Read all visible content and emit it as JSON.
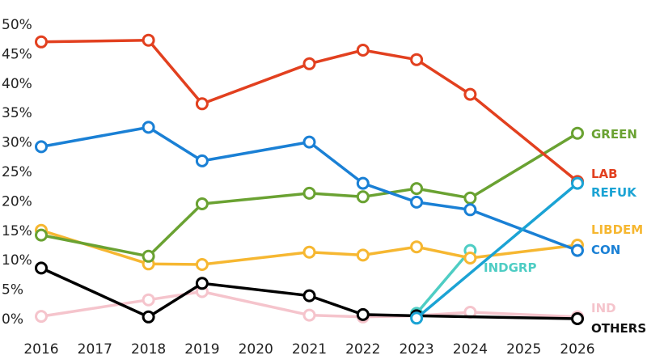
{
  "chart_data": {
    "type": "line",
    "title": "",
    "xlabel": "",
    "ylabel": "",
    "x_ticks": [
      "2016",
      "2017",
      "2018",
      "2019",
      "2020",
      "2021",
      "2022",
      "2023",
      "2024",
      "2025",
      "2026"
    ],
    "y_ticks": [
      "0%",
      "5%",
      "10%",
      "15%",
      "20%",
      "25%",
      "30%",
      "35%",
      "40%",
      "45%",
      "50%"
    ],
    "xlim": [
      2016,
      2026
    ],
    "ylim": [
      0,
      50
    ],
    "grid": false,
    "legend": "labels at line ends (right)",
    "series": [
      {
        "name": "IND",
        "color": "#f5c4cc",
        "x": [
          2016,
          2018,
          2019,
          2021,
          2022,
          2023,
          2024,
          2026
        ],
        "y": [
          0.4,
          3.2,
          4.6,
          0.6,
          0.3,
          0.5,
          1.1,
          0.3
        ]
      },
      {
        "name": "INDGRP",
        "color": "#4ecdc4",
        "x": [
          2023,
          2024
        ],
        "y": [
          0.9,
          11.6
        ]
      },
      {
        "name": "OTHERS",
        "color": "#000000",
        "x": [
          2016,
          2018,
          2019,
          2021,
          2022,
          2023,
          2026
        ],
        "y": [
          8.6,
          0.3,
          6.0,
          3.9,
          0.7,
          0.5,
          0.0
        ]
      },
      {
        "name": "LIBDEM",
        "color": "#f6b731",
        "x": [
          2016,
          2018,
          2019,
          2021,
          2022,
          2023,
          2024,
          2026
        ],
        "y": [
          15.0,
          9.3,
          9.2,
          11.3,
          10.8,
          12.2,
          10.3,
          12.5
        ]
      },
      {
        "name": "GREEN",
        "color": "#6aa232",
        "x": [
          2016,
          2018,
          2019,
          2021,
          2022,
          2023,
          2024,
          2026
        ],
        "y": [
          14.2,
          10.6,
          19.5,
          21.3,
          20.7,
          22.1,
          20.5,
          31.5
        ]
      },
      {
        "name": "CON",
        "color": "#1a80d5",
        "x": [
          2016,
          2018,
          2019,
          2021,
          2022,
          2023,
          2024,
          2026
        ],
        "y": [
          29.2,
          32.5,
          26.8,
          30.0,
          23.0,
          19.8,
          18.5,
          11.6
        ]
      },
      {
        "name": "LAB",
        "color": "#e2401f",
        "x": [
          2016,
          2018,
          2019,
          2021,
          2022,
          2023,
          2024,
          2026
        ],
        "y": [
          47.0,
          47.3,
          36.5,
          43.3,
          45.6,
          44.0,
          38.1,
          23.3
        ]
      },
      {
        "name": "REFUK",
        "color": "#1ba3d4",
        "x": [
          2023,
          2026
        ],
        "y": [
          0.1,
          23.0
        ]
      }
    ]
  }
}
